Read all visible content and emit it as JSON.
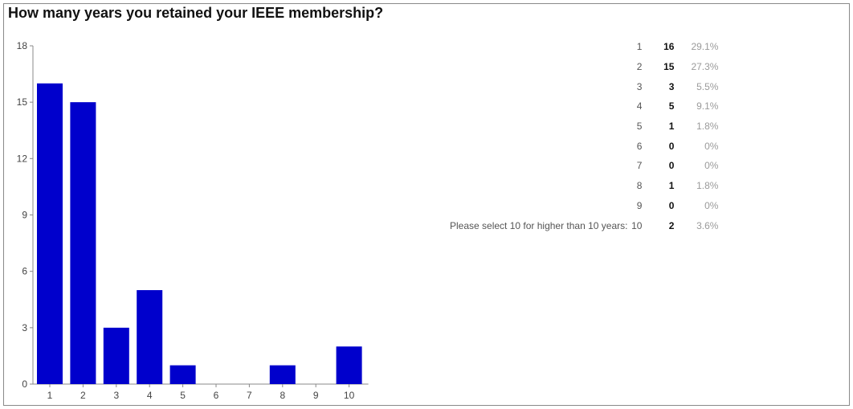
{
  "title": "How many years you retained your IEEE membership?",
  "chart_data": {
    "type": "bar",
    "title": "How many years you retained your IEEE membership?",
    "categories": [
      "1",
      "2",
      "3",
      "4",
      "5",
      "6",
      "7",
      "8",
      "9",
      "10"
    ],
    "values": [
      16,
      15,
      3,
      5,
      1,
      0,
      0,
      1,
      0,
      2
    ],
    "ylim": [
      0,
      18
    ],
    "yticks": [
      0,
      3,
      6,
      9,
      12,
      15,
      18
    ],
    "ytick_labels": [
      "0",
      "3",
      "6",
      "9",
      "12",
      "15",
      "18"
    ],
    "xlabel": "",
    "ylabel": "",
    "bar_color": "#0000cc",
    "grid": false,
    "legend": "none"
  },
  "table": {
    "rows": [
      {
        "prefix": "",
        "category": "1",
        "count": "16",
        "percent": "29.1%"
      },
      {
        "prefix": "",
        "category": "2",
        "count": "15",
        "percent": "27.3%"
      },
      {
        "prefix": "",
        "category": "3",
        "count": "3",
        "percent": "5.5%"
      },
      {
        "prefix": "",
        "category": "4",
        "count": "5",
        "percent": "9.1%"
      },
      {
        "prefix": "",
        "category": "5",
        "count": "1",
        "percent": "1.8%"
      },
      {
        "prefix": "",
        "category": "6",
        "count": "0",
        "percent": "0%"
      },
      {
        "prefix": "",
        "category": "7",
        "count": "0",
        "percent": "0%"
      },
      {
        "prefix": "",
        "category": "8",
        "count": "1",
        "percent": "1.8%"
      },
      {
        "prefix": "",
        "category": "9",
        "count": "0",
        "percent": "0%"
      },
      {
        "prefix": "Please select 10 for higher than 10 years:",
        "category": "10",
        "count": "2",
        "percent": "3.6%"
      }
    ]
  }
}
